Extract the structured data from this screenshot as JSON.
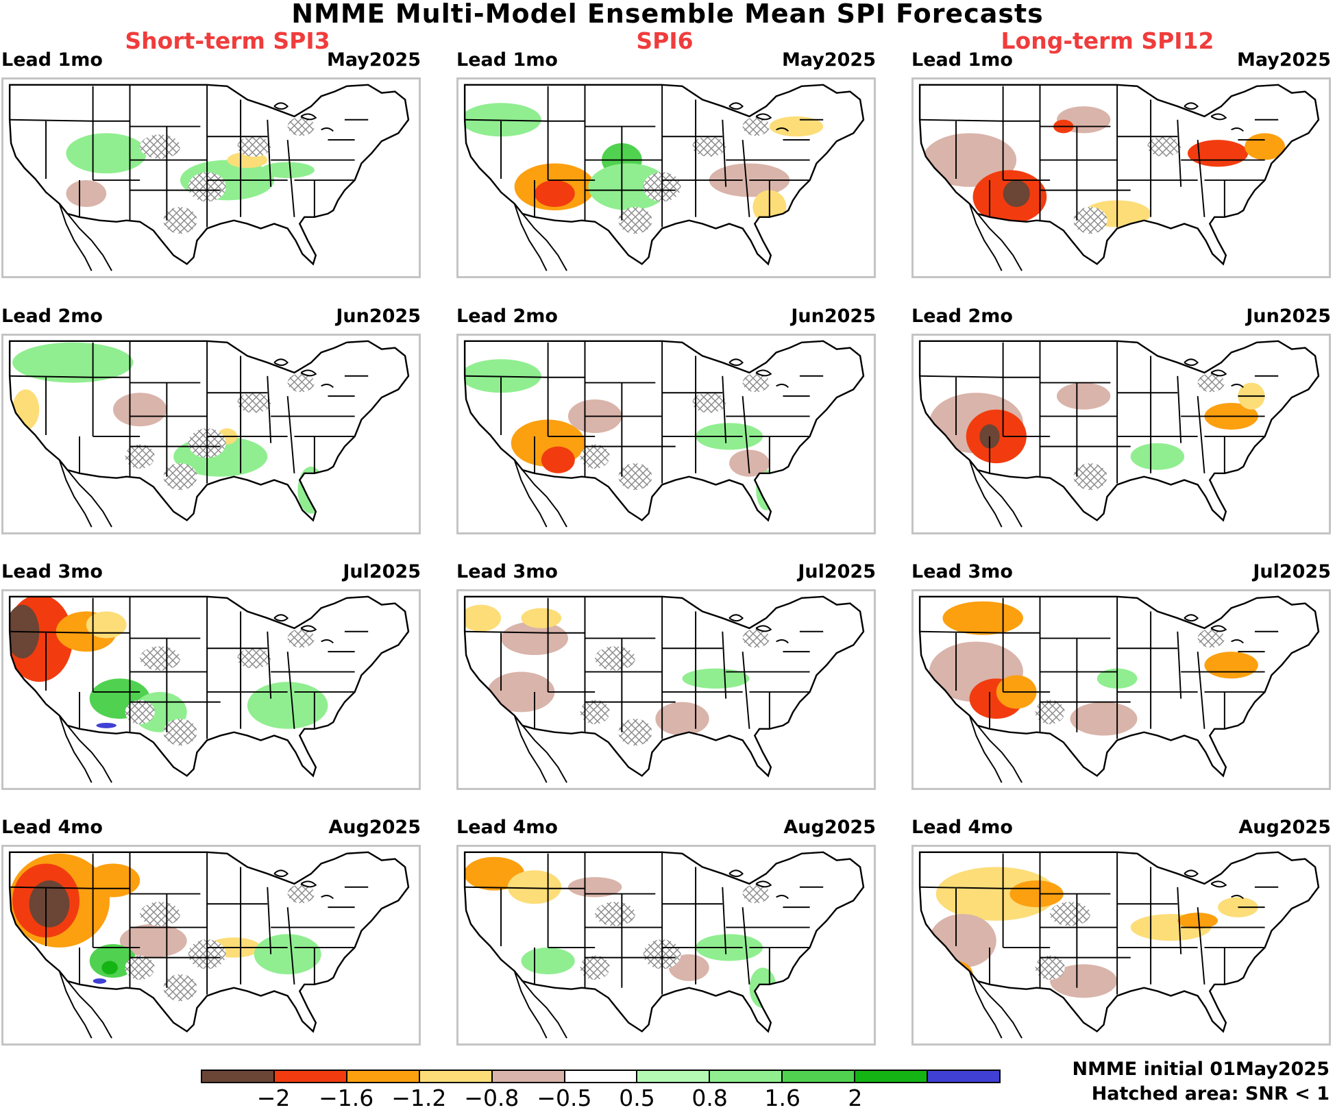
{
  "title": "NMME   Multi-Model Ensemble Mean SPI Forecasts",
  "columns": [
    "Short-term SPI3",
    "SPI6",
    "Long-term SPI12"
  ],
  "rows": [
    {
      "lead": "Lead  1mo",
      "month": "May2025"
    },
    {
      "lead": "Lead  2mo",
      "month": "Jun2025"
    },
    {
      "lead": "Lead  3mo",
      "month": "Jul2025"
    },
    {
      "lead": "Lead  4mo",
      "month": "Aug2025"
    }
  ],
  "colorbar": {
    "colors": [
      "#6b4535",
      "#f23c0f",
      "#fca010",
      "#fcdd78",
      "#d9b4aa",
      "#ffffff",
      "#b4fab4",
      "#90ee90",
      "#50d250",
      "#14b414",
      "#4040d4"
    ],
    "tick_labels": [
      "−2",
      "−1.6",
      "−1.2",
      "−0.8",
      "−0.5",
      "0.5",
      "0.8",
      "1.6",
      "2"
    ]
  },
  "footer": {
    "line1": "NMME initial 01May2025",
    "line2": "Hatched area: SNR < 1"
  },
  "map_colors": {
    "dry_strong": "#6b4535",
    "dry": "#f23c0f",
    "dry_mod": "#fca010",
    "dry_light": "#fcdd78",
    "near_dry": "#d9b4aa",
    "wet_light": "#b4fab4",
    "wet": "#90ee90",
    "wet_mod": "#50d250",
    "wet_strong": "#14b414",
    "wet_extreme": "#4040d4",
    "outline": "#000000",
    "hatch": "#8c8c8c"
  }
}
